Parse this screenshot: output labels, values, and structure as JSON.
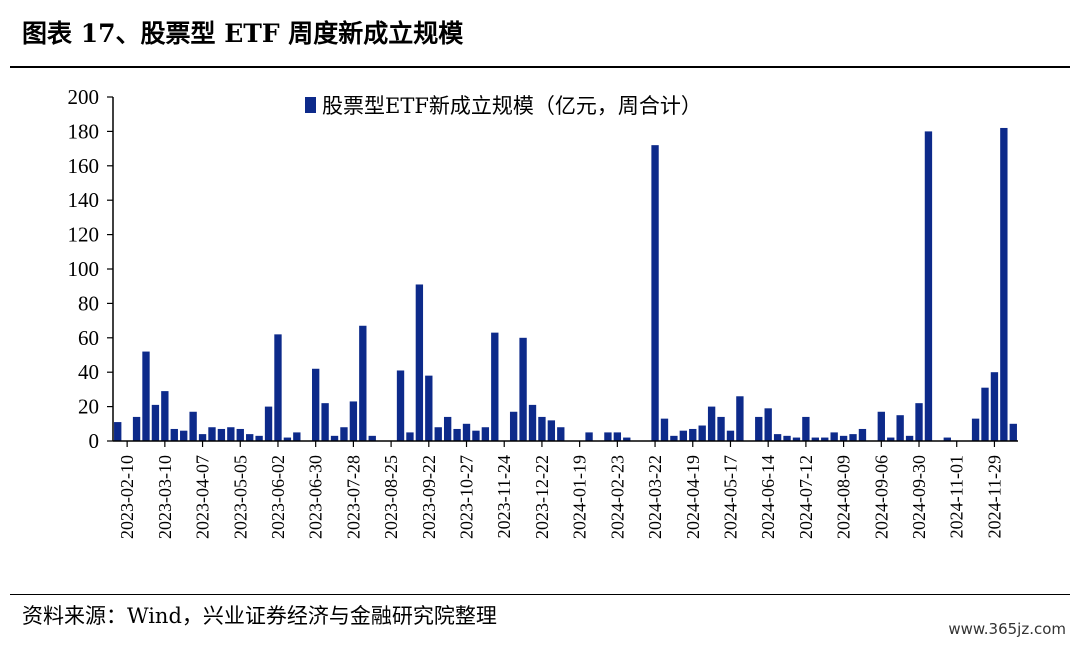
{
  "figure_title": "图表 17、股票型 ETF 周度新成立规模",
  "source_note": "资料来源：Wind，兴业证券经济与金融研究院整理",
  "watermark": "www.365jz.com",
  "colors": {
    "bar": "#0d2a8a",
    "axis": "#000000"
  },
  "chart_data": {
    "type": "bar",
    "legend_position": "top-center",
    "grid": false,
    "ylim": [
      0,
      200
    ],
    "yticks": [
      0,
      20,
      40,
      60,
      80,
      100,
      120,
      140,
      160,
      180,
      200
    ],
    "xtick_labels": [
      "2023-02-10",
      "2023-03-10",
      "2023-04-07",
      "2023-05-05",
      "2023-06-02",
      "2023-06-30",
      "2023-07-28",
      "2023-08-25",
      "2023-09-22",
      "2023-10-27",
      "2023-11-24",
      "2023-12-22",
      "2024-01-19",
      "2024-02-23",
      "2024-03-22",
      "2024-04-19",
      "2024-05-17",
      "2024-06-14",
      "2024-07-12",
      "2024-08-09",
      "2024-09-06",
      "2024-09-30",
      "2024-11-01",
      "2024-11-29"
    ],
    "series": [
      {
        "name": "股票型ETF新成立规模（亿元，周合计）",
        "values": [
          11,
          0,
          14,
          52,
          21,
          29,
          7,
          6,
          17,
          4,
          8,
          7,
          8,
          7,
          4,
          3,
          20,
          62,
          2,
          5,
          0,
          42,
          22,
          3,
          8,
          23,
          67,
          3,
          0,
          0,
          41,
          5,
          91,
          38,
          8,
          14,
          7,
          10,
          6,
          8,
          63,
          0,
          17,
          60,
          21,
          14,
          12,
          8,
          0,
          0,
          5,
          0,
          5,
          5,
          2,
          0,
          0,
          172,
          13,
          3,
          6,
          7,
          9,
          20,
          14,
          6,
          26,
          0,
          14,
          19,
          4,
          3,
          2,
          14,
          2,
          2,
          5,
          3,
          4,
          7,
          0,
          17,
          2,
          15,
          3,
          22,
          180,
          0,
          2,
          0,
          0,
          13,
          31,
          40,
          182,
          10
        ]
      }
    ]
  }
}
